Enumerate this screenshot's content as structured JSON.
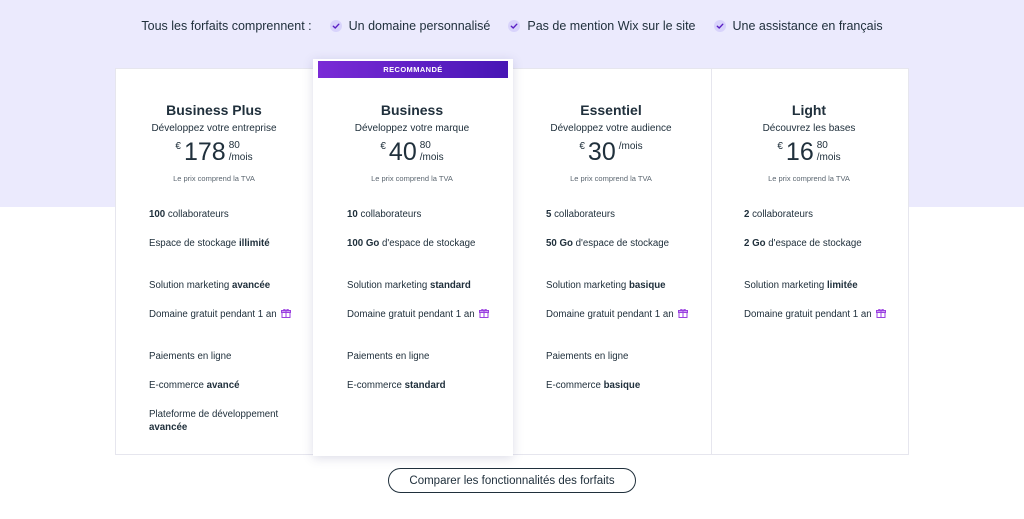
{
  "includes": {
    "lead": "Tous les forfaits comprennent :",
    "items": [
      "Un domaine personnalisé",
      "Pas de mention Wix sur le site",
      "Une assistance en français"
    ]
  },
  "ribbon": "RECOMMANDÉ",
  "colors": {
    "accent": "#5a1fc4",
    "band": "#ebeafd",
    "text": "#20303c"
  },
  "plans": [
    {
      "name": "Business Plus",
      "tagline": "Développez votre entreprise",
      "currency": "€",
      "amount": "178",
      "cents": "80",
      "per": "/mois",
      "vat": "Le prix comprend la TVA",
      "features": [
        {
          "a": "",
          "b": "100",
          "c": " collaborateurs"
        },
        {
          "a": "Espace de stockage ",
          "b": "illimité",
          "c": ""
        },
        {
          "a": "Solution marketing ",
          "b": "avancée",
          "c": ""
        },
        {
          "a": "Domaine gratuit pendant 1 an",
          "b": "",
          "c": "",
          "gift": true
        },
        {
          "a": "Paiements en ligne",
          "b": "",
          "c": ""
        },
        {
          "a": "E-commerce ",
          "b": "avancé",
          "c": ""
        },
        {
          "a": "Plateforme de développement ",
          "b": "avancée",
          "c": ""
        }
      ]
    },
    {
      "name": "Business",
      "tagline": "Développez votre marque",
      "currency": "€",
      "amount": "40",
      "cents": "80",
      "per": "/mois",
      "vat": "Le prix comprend la TVA",
      "features": [
        {
          "a": "",
          "b": "10",
          "c": " collaborateurs"
        },
        {
          "a": "",
          "b": "100 Go",
          "c": " d'espace de stockage"
        },
        {
          "a": "Solution marketing ",
          "b": "standard",
          "c": ""
        },
        {
          "a": "Domaine gratuit pendant 1 an",
          "b": "",
          "c": "",
          "gift": true
        },
        {
          "a": "Paiements en ligne",
          "b": "",
          "c": ""
        },
        {
          "a": "E-commerce ",
          "b": "standard",
          "c": ""
        }
      ]
    },
    {
      "name": "Essentiel",
      "tagline": "Développez votre audience",
      "currency": "€",
      "amount": "30",
      "cents": "",
      "per": "/mois",
      "vat": "Le prix comprend la TVA",
      "features": [
        {
          "a": "",
          "b": "5",
          "c": " collaborateurs"
        },
        {
          "a": "",
          "b": "50 Go",
          "c": " d'espace de stockage"
        },
        {
          "a": "Solution marketing ",
          "b": "basique",
          "c": ""
        },
        {
          "a": "Domaine gratuit pendant 1 an",
          "b": "",
          "c": "",
          "gift": true
        },
        {
          "a": "Paiements en ligne",
          "b": "",
          "c": ""
        },
        {
          "a": "E-commerce ",
          "b": "basique",
          "c": ""
        }
      ]
    },
    {
      "name": "Light",
      "tagline": "Découvrez les bases",
      "currency": "€",
      "amount": "16",
      "cents": "80",
      "per": "/mois",
      "vat": "Le prix comprend la TVA",
      "features": [
        {
          "a": "",
          "b": "2",
          "c": " collaborateurs"
        },
        {
          "a": "",
          "b": "2 Go",
          "c": " d'espace de stockage"
        },
        {
          "a": "Solution marketing ",
          "b": "limitée",
          "c": ""
        },
        {
          "a": "Domaine gratuit pendant 1 an",
          "b": "",
          "c": "",
          "gift": true
        }
      ]
    }
  ],
  "compare_button": "Comparer les fonctionnalités des forfaits"
}
